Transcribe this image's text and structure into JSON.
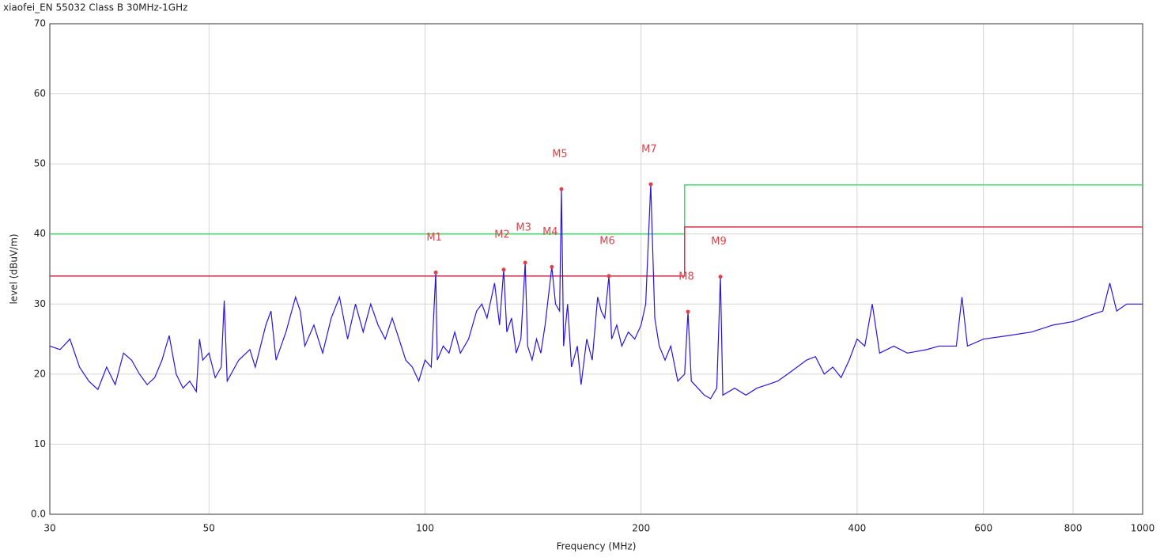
{
  "chart_data": {
    "type": "line",
    "title": "xiaofei_EN 55032 Class B 30MHz-1GHz",
    "x_label": "Frequency (MHz)",
    "y_label": "level (dBuV/m)",
    "x_scale": "log",
    "grid": true,
    "xlim": [
      30,
      1000
    ],
    "ylim": [
      0,
      70
    ],
    "xticks": [
      30,
      50,
      100,
      200,
      400,
      600,
      800,
      1000
    ],
    "yticks": [
      {
        "value": 0,
        "label": "0.0"
      },
      10,
      20,
      30,
      40,
      50,
      60,
      70
    ],
    "series": [
      {
        "color": "#2b14e0",
        "x": [
          30,
          31,
          32,
          33,
          34,
          35,
          36,
          37,
          38,
          39,
          40,
          41,
          42,
          43,
          44,
          45,
          46,
          47,
          48,
          48.5,
          49,
          50,
          51,
          52,
          52.5,
          53,
          55,
          57,
          58,
          60,
          61,
          62,
          64,
          66,
          67,
          68,
          70,
          72,
          74,
          76,
          78,
          80,
          82,
          84,
          86,
          88,
          90,
          92,
          94,
          96,
          98,
          100,
          102,
          103.5,
          104,
          106,
          108,
          110,
          112,
          115,
          118,
          120,
          122,
          125,
          127,
          128.7,
          130,
          132,
          134,
          136,
          137.9,
          139,
          141,
          143,
          145,
          147,
          150.2,
          152,
          154,
          154.9,
          156,
          158,
          160,
          163,
          165,
          168,
          171,
          174,
          176,
          178,
          180.4,
          182,
          185,
          188,
          192,
          196,
          200,
          203,
          206.3,
          209,
          212,
          216,
          220,
          225,
          230,
          232.5,
          235,
          240,
          245,
          250,
          255,
          258,
          260,
          270,
          280,
          290,
          300,
          310,
          320,
          330,
          340,
          350,
          360,
          370,
          380,
          390,
          400,
          410,
          420,
          430,
          450,
          470,
          500,
          520,
          550,
          560,
          570,
          600,
          650,
          700,
          750,
          800,
          850,
          880,
          900,
          920,
          950,
          1000
        ],
        "values": [
          24,
          23.5,
          25,
          21,
          19,
          17.8,
          21,
          18.5,
          23,
          22,
          20,
          18.5,
          19.5,
          22,
          25.5,
          20,
          18,
          19,
          17.5,
          25,
          22,
          23,
          19.5,
          21,
          30.5,
          19,
          22,
          23.5,
          21,
          27,
          29,
          22,
          26,
          31,
          29,
          24,
          27,
          23,
          28,
          31,
          25,
          30,
          26,
          30,
          27,
          25,
          28,
          25,
          22,
          21,
          19,
          22,
          21,
          34.5,
          22,
          24,
          23,
          26,
          23,
          25,
          29,
          30,
          28,
          33,
          27,
          34.9,
          26,
          28,
          23,
          25,
          35.9,
          24,
          22,
          25,
          23,
          27,
          35.3,
          30,
          29,
          46.4,
          24,
          30,
          21,
          24,
          18.5,
          25,
          22,
          31,
          29,
          28,
          34,
          25,
          27,
          24,
          26,
          25,
          27,
          30,
          47.1,
          28,
          24,
          22,
          24,
          19,
          20,
          28.9,
          19,
          18,
          17,
          16.5,
          18,
          33.9,
          17,
          18,
          17,
          18,
          18.5,
          19,
          20,
          21,
          22,
          22.5,
          20,
          21,
          19.5,
          22,
          25,
          24,
          30,
          23,
          24,
          23,
          23.5,
          24,
          24,
          31,
          24,
          25,
          25.5,
          26,
          27,
          27.5,
          28.5,
          29,
          33,
          29,
          30,
          30
        ]
      }
    ],
    "limit_lines": [
      {
        "color": "#3ddc6a",
        "x": [
          30,
          230,
          230,
          1000
        ],
        "values": [
          40,
          40,
          47,
          47
        ]
      },
      {
        "color": "#d8334a",
        "x": [
          30,
          230,
          230,
          1000
        ],
        "values": [
          34,
          34,
          41,
          41
        ]
      }
    ],
    "marker_color": "#e0404a",
    "markers": [
      {
        "name": "M1",
        "freq": 103.5,
        "level": 34.5
      },
      {
        "name": "M2",
        "freq": 128.7,
        "level": 34.9
      },
      {
        "name": "M3",
        "freq": 137.9,
        "level": 35.9
      },
      {
        "name": "M4",
        "freq": 150.2,
        "level": 35.3
      },
      {
        "name": "M5",
        "freq": 154.9,
        "level": 46.4
      },
      {
        "name": "M6",
        "freq": 180.4,
        "level": 34.0
      },
      {
        "name": "M7",
        "freq": 206.3,
        "level": 47.1
      },
      {
        "name": "M8",
        "freq": 232.5,
        "level": 28.9
      },
      {
        "name": "M9",
        "freq": 258,
        "level": 33.9
      }
    ]
  }
}
